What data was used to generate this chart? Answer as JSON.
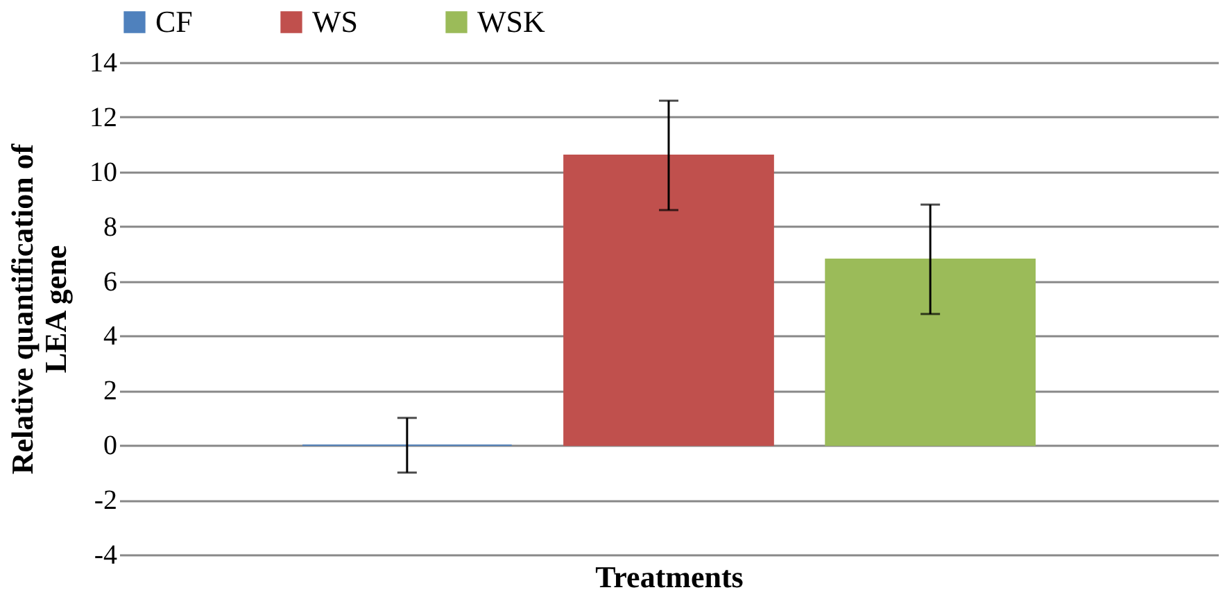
{
  "chart_data": {
    "type": "bar",
    "xlabel": "Treatments",
    "ylabel": "Relative quantification of LEA gene",
    "categories": [
      null
    ],
    "series": [
      {
        "name": "CF",
        "color": "#4f81bd",
        "values": [
          0
        ],
        "errors": [
          1
        ]
      },
      {
        "name": "WS",
        "color": "#c0504d",
        "values": [
          10.6
        ],
        "errors": [
          2
        ]
      },
      {
        "name": "WSK",
        "color": "#9bbb59",
        "values": [
          6.8
        ],
        "errors": [
          2
        ]
      }
    ],
    "ylim": [
      -4,
      14
    ],
    "yticks": [
      -4,
      -2,
      0,
      2,
      4,
      6,
      8,
      10,
      12,
      14
    ],
    "grid": "y",
    "legend": "top",
    "tick_labels": "y"
  }
}
